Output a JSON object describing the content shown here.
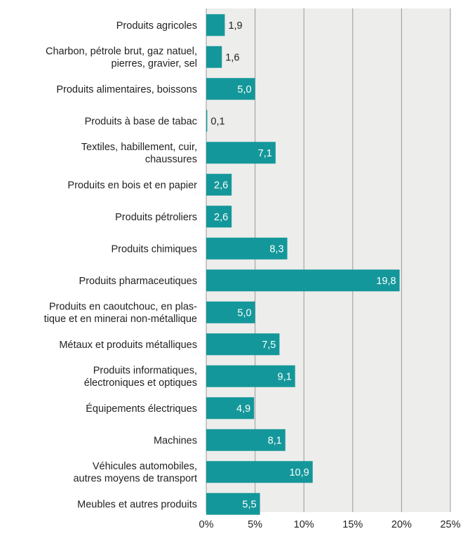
{
  "chart_data": {
    "type": "bar",
    "orientation": "horizontal",
    "title": "",
    "xlabel": "",
    "ylabel": "",
    "categories": [
      "Produits agricoles",
      "Charbon, pétrole brut, gaz natuel, pierres, gravier, sel",
      "Produits alimentaires, boissons",
      "Produits à base de tabac",
      "Textiles, habillement, cuir, chaussures",
      "Produits en bois et en papier",
      "Produits pétroliers",
      "Produits chimiques",
      "Produits pharmaceutiques",
      "Produits en caoutchouc, en plas- tique et en minerai non-métallique",
      "Métaux et produits métalliques",
      "Produits informatiques, électroniques et optiques",
      "Équipements électriques",
      "Machines",
      "Véhicules automobiles, autres moyens de transport",
      "Meubles et autres produits"
    ],
    "category_lines": [
      [
        "Produits agricoles"
      ],
      [
        "Charbon, pétrole brut, gaz natuel,",
        "pierres, gravier, sel"
      ],
      [
        "Produits alimentaires, boissons"
      ],
      [
        "Produits à base de tabac"
      ],
      [
        "Textiles, habillement, cuir,",
        "chaussures"
      ],
      [
        "Produits en bois et en papier"
      ],
      [
        "Produits pétroliers"
      ],
      [
        "Produits chimiques"
      ],
      [
        "Produits pharmaceutiques"
      ],
      [
        "Produits en caoutchouc, en plas-",
        "tique et en minerai non-métallique"
      ],
      [
        "Métaux et produits métalliques"
      ],
      [
        "Produits informatiques,",
        "électroniques et optiques"
      ],
      [
        "Équipements électriques"
      ],
      [
        "Machines"
      ],
      [
        "Véhicules automobiles,",
        "autres moyens de transport"
      ],
      [
        "Meubles et autres produits"
      ]
    ],
    "values": [
      1.9,
      1.6,
      5.0,
      0.1,
      7.1,
      2.6,
      2.6,
      8.3,
      19.8,
      5.0,
      7.5,
      9.1,
      4.9,
      8.1,
      10.9,
      5.5
    ],
    "value_labels": [
      "1,9",
      "1,6",
      "5,0",
      "0,1",
      "7,1",
      "2,6",
      "2,6",
      "8,3",
      "19,8",
      "5,0",
      "7,5",
      "9,1",
      "4,9",
      "8,1",
      "10,9",
      "5,5"
    ],
    "xlim": [
      0,
      25
    ],
    "x_ticks": [
      0,
      5,
      10,
      15,
      20,
      25
    ],
    "x_tick_labels": [
      "0%",
      "5%",
      "10%",
      "15%",
      "20%",
      "25%"
    ],
    "grid": true,
    "legend": "none",
    "bar_color": "#14979a",
    "plot_background": "#ededeb",
    "grid_color": "#9a9a9a",
    "inside_label_color": "#ffffff",
    "outside_label_color": "#222222"
  }
}
